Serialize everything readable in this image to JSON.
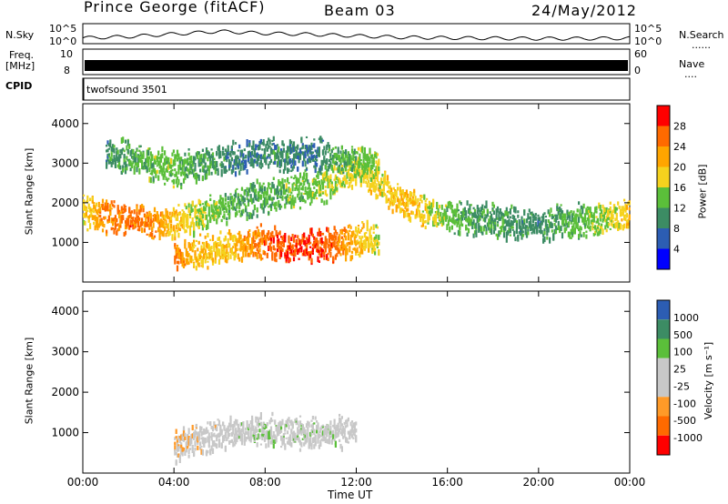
{
  "header": {
    "station": "Prince George (fitACF)",
    "beam": "Beam 03",
    "date": "24/May/2012"
  },
  "labels": {
    "nsky": "N.Sky",
    "nsearch": "N.Search",
    "nsearch_dots": "......",
    "freq_line1": "Freq.",
    "freq_line2": "[MHz]",
    "nave": "Nave",
    "nave_dots": "....",
    "cpid": "CPID",
    "cpid_value": "twofsound 3501"
  },
  "colors": {
    "power_scale": [
      "#0000ff",
      "#2c5db3",
      "#3c8c64",
      "#5bbf3a",
      "#f5d21e",
      "#ffa500",
      "#ff6a00",
      "#ff0000"
    ],
    "velocity_scale": [
      "#ff0000",
      "#ff6a00",
      "#ff9a28",
      "#c8c8c8",
      "#c8c8c8",
      "#5bbf3a",
      "#3c8c64",
      "#2c5db3"
    ]
  },
  "chart_data": [
    {
      "id": "noise",
      "type": "line",
      "ylabel_left": "N.Sky",
      "ylabel_right": "N.Search",
      "left_ticks": [
        "10^5",
        "10^0"
      ],
      "right_ticks": [
        "10^5",
        "10^0"
      ],
      "x": [
        0,
        2,
        4,
        6,
        8,
        10,
        12,
        14,
        16,
        18,
        20,
        22,
        24
      ],
      "y": [
        1.2,
        1.6,
        2.4,
        3.2,
        2.6,
        2.3,
        1.8,
        1.4,
        1.2,
        1.1,
        1.0,
        1.0,
        1.1
      ],
      "xlim": [
        0,
        24
      ]
    },
    {
      "id": "frequency",
      "type": "bar",
      "ylabel_left": "Freq. [MHz]",
      "ylabel_right": "Nave",
      "left_ticks": [
        "10",
        "8"
      ],
      "right_ticks": [
        "60",
        "0"
      ],
      "xlim": [
        0,
        24
      ]
    },
    {
      "id": "power",
      "type": "heatmap",
      "ylabel": "Slant Range [km]",
      "yticks": [
        "1000",
        "2000",
        "3000",
        "4000"
      ],
      "ylim": [
        0,
        4500
      ],
      "colorbar_label": "Power [dB]",
      "colorbar_ticks": [
        "4",
        "8",
        "12",
        "16",
        "20",
        "24",
        "28"
      ],
      "bands": [
        {
          "x": [
            0,
            1,
            2,
            3,
            4,
            5,
            6,
            7,
            8,
            9,
            10,
            11,
            12,
            13,
            14,
            15,
            16,
            17,
            18,
            19,
            20,
            21,
            22,
            23,
            24
          ],
          "y": [
            1800,
            1700,
            1600,
            1500,
            1550,
            1750,
            1900,
            2100,
            2200,
            2300,
            2400,
            2600,
            2900,
            2500,
            2000,
            1850,
            1700,
            1650,
            1600,
            1500,
            1500,
            1550,
            1600,
            1650,
            1700
          ],
          "value": [
            18,
            24,
            26,
            24,
            20,
            16,
            14,
            12,
            12,
            14,
            14,
            16,
            18,
            18,
            20,
            18,
            14,
            12,
            12,
            10,
            10,
            12,
            14,
            16,
            20
          ]
        },
        {
          "x": [
            4,
            5,
            6,
            7,
            8,
            9,
            10,
            11,
            12,
            13
          ],
          "y": [
            700,
            800,
            900,
            1000,
            1050,
            1000,
            950,
            1000,
            1100,
            1200
          ],
          "value": [
            24,
            20,
            18,
            22,
            26,
            28,
            28,
            26,
            20,
            16
          ]
        },
        {
          "x": [
            1,
            2,
            3,
            4,
            5,
            6,
            7,
            8,
            9,
            10,
            11,
            12,
            13
          ],
          "y": [
            3300,
            3200,
            3000,
            2900,
            3000,
            3100,
            3200,
            3300,
            3250,
            3300,
            3200,
            3100,
            3000
          ],
          "value": [
            10,
            12,
            14,
            14,
            12,
            10,
            8,
            10,
            10,
            8,
            12,
            14,
            16
          ]
        }
      ]
    },
    {
      "id": "velocity",
      "type": "heatmap",
      "ylabel": "Slant Range [km]",
      "yticks": [
        "1000",
        "2000",
        "3000",
        "4000"
      ],
      "ylim": [
        0,
        4500
      ],
      "colorbar_label": "Velocity [m s⁻¹]",
      "colorbar_ticks": [
        "1000",
        "500",
        "100",
        "25",
        "-25",
        "-100",
        "-500",
        "-1000"
      ],
      "xticks": [
        "00:00",
        "04:00",
        "08:00",
        "12:00",
        "16:00",
        "20:00",
        "00:00"
      ],
      "xlabel": "Time UT",
      "bands": [
        {
          "x": [
            4,
            5,
            6,
            7,
            8,
            9,
            10,
            11,
            12
          ],
          "y": [
            700,
            850,
            1000,
            1050,
            1100,
            1050,
            1000,
            1050,
            1100
          ],
          "value": [
            -300,
            -200,
            -100,
            150,
            300,
            150,
            200,
            150,
            50
          ]
        }
      ]
    }
  ]
}
